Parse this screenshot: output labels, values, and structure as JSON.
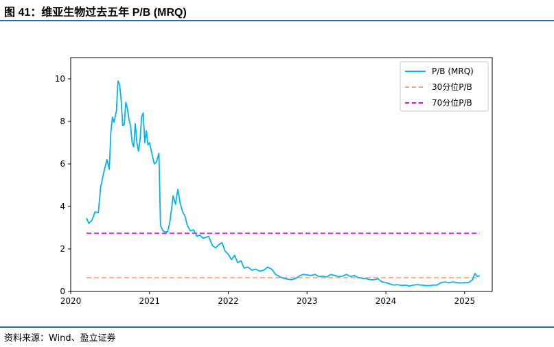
{
  "header": {
    "title": "图 41：维亚生物过去五年 P/B (MRQ)"
  },
  "footer": {
    "source": "资料来源：Wind、盈立证券"
  },
  "colors": {
    "pb_line": "#00b4f0",
    "p30_line": "#ffa07a",
    "p70_line": "#ff00ff",
    "rule": "#1f6fb4"
  },
  "chart_data": {
    "type": "line",
    "title": "",
    "xlabel": "",
    "ylabel": "",
    "xlim": [
      2020.0,
      2025.35
    ],
    "ylim": [
      0,
      11
    ],
    "xticks": [
      2020,
      2021,
      2022,
      2023,
      2024,
      2025
    ],
    "yticks": [
      0,
      2,
      4,
      6,
      8,
      10
    ],
    "grid": false,
    "legend_position": "top-right",
    "series": [
      {
        "name": "P/B (MRQ)",
        "style": "solid",
        "points": [
          [
            2020.2,
            3.45
          ],
          [
            2020.23,
            3.2
          ],
          [
            2020.27,
            3.35
          ],
          [
            2020.31,
            3.75
          ],
          [
            2020.35,
            3.7
          ],
          [
            2020.38,
            4.9
          ],
          [
            2020.42,
            5.6
          ],
          [
            2020.46,
            6.2
          ],
          [
            2020.49,
            5.75
          ],
          [
            2020.51,
            7.5
          ],
          [
            2020.53,
            8.2
          ],
          [
            2020.55,
            7.95
          ],
          [
            2020.58,
            8.5
          ],
          [
            2020.6,
            9.9
          ],
          [
            2020.62,
            9.75
          ],
          [
            2020.64,
            9.0
          ],
          [
            2020.66,
            7.8
          ],
          [
            2020.68,
            7.85
          ],
          [
            2020.7,
            8.9
          ],
          [
            2020.72,
            8.6
          ],
          [
            2020.74,
            8.1
          ],
          [
            2020.76,
            7.8
          ],
          [
            2020.78,
            7.0
          ],
          [
            2020.8,
            6.8
          ],
          [
            2020.82,
            7.9
          ],
          [
            2020.84,
            7.0
          ],
          [
            2020.86,
            6.6
          ],
          [
            2020.88,
            7.1
          ],
          [
            2020.9,
            8.2
          ],
          [
            2020.92,
            8.4
          ],
          [
            2020.94,
            7.0
          ],
          [
            2020.96,
            7.55
          ],
          [
            2020.98,
            6.9
          ],
          [
            2021.0,
            7.0
          ],
          [
            2021.03,
            6.5
          ],
          [
            2021.06,
            6.0
          ],
          [
            2021.09,
            6.1
          ],
          [
            2021.12,
            6.5
          ],
          [
            2021.14,
            3.1
          ],
          [
            2021.17,
            2.85
          ],
          [
            2021.2,
            2.8
          ],
          [
            2021.23,
            2.8
          ],
          [
            2021.26,
            3.3
          ],
          [
            2021.3,
            4.5
          ],
          [
            2021.33,
            4.1
          ],
          [
            2021.36,
            4.8
          ],
          [
            2021.39,
            4.15
          ],
          [
            2021.42,
            3.75
          ],
          [
            2021.45,
            3.55
          ],
          [
            2021.48,
            3.1
          ],
          [
            2021.52,
            2.85
          ],
          [
            2021.56,
            2.9
          ],
          [
            2021.6,
            2.6
          ],
          [
            2021.64,
            2.65
          ],
          [
            2021.68,
            2.5
          ],
          [
            2021.72,
            2.55
          ],
          [
            2021.75,
            2.6
          ],
          [
            2021.8,
            2.15
          ],
          [
            2021.84,
            2.05
          ],
          [
            2021.88,
            2.2
          ],
          [
            2021.92,
            2.3
          ],
          [
            2021.96,
            1.9
          ],
          [
            2022.0,
            1.75
          ],
          [
            2022.04,
            1.5
          ],
          [
            2022.08,
            1.7
          ],
          [
            2022.12,
            1.35
          ],
          [
            2022.16,
            1.45
          ],
          [
            2022.2,
            1.1
          ],
          [
            2022.25,
            1.15
          ],
          [
            2022.3,
            1.0
          ],
          [
            2022.35,
            1.05
          ],
          [
            2022.4,
            0.95
          ],
          [
            2022.45,
            1.0
          ],
          [
            2022.5,
            1.15
          ],
          [
            2022.55,
            1.05
          ],
          [
            2022.6,
            0.8
          ],
          [
            2022.65,
            0.7
          ],
          [
            2022.7,
            0.62
          ],
          [
            2022.75,
            0.58
          ],
          [
            2022.8,
            0.55
          ],
          [
            2022.85,
            0.6
          ],
          [
            2022.9,
            0.72
          ],
          [
            2022.95,
            0.8
          ],
          [
            2023.0,
            0.78
          ],
          [
            2023.05,
            0.75
          ],
          [
            2023.1,
            0.8
          ],
          [
            2023.15,
            0.7
          ],
          [
            2023.2,
            0.72
          ],
          [
            2023.25,
            0.68
          ],
          [
            2023.3,
            0.8
          ],
          [
            2023.35,
            0.75
          ],
          [
            2023.4,
            0.7
          ],
          [
            2023.45,
            0.72
          ],
          [
            2023.5,
            0.8
          ],
          [
            2023.55,
            0.7
          ],
          [
            2023.6,
            0.75
          ],
          [
            2023.65,
            0.65
          ],
          [
            2023.7,
            0.62
          ],
          [
            2023.75,
            0.6
          ],
          [
            2023.8,
            0.55
          ],
          [
            2023.85,
            0.55
          ],
          [
            2023.9,
            0.6
          ],
          [
            2023.95,
            0.45
          ],
          [
            2024.0,
            0.42
          ],
          [
            2024.05,
            0.35
          ],
          [
            2024.1,
            0.3
          ],
          [
            2024.15,
            0.32
          ],
          [
            2024.2,
            0.28
          ],
          [
            2024.25,
            0.3
          ],
          [
            2024.3,
            0.25
          ],
          [
            2024.35,
            0.3
          ],
          [
            2024.4,
            0.32
          ],
          [
            2024.45,
            0.3
          ],
          [
            2024.5,
            0.28
          ],
          [
            2024.55,
            0.27
          ],
          [
            2024.6,
            0.3
          ],
          [
            2024.65,
            0.3
          ],
          [
            2024.7,
            0.42
          ],
          [
            2024.75,
            0.45
          ],
          [
            2024.8,
            0.42
          ],
          [
            2024.85,
            0.45
          ],
          [
            2024.9,
            0.42
          ],
          [
            2024.95,
            0.4
          ],
          [
            2025.0,
            0.42
          ],
          [
            2025.05,
            0.42
          ],
          [
            2025.1,
            0.55
          ],
          [
            2025.13,
            0.85
          ],
          [
            2025.16,
            0.7
          ],
          [
            2025.19,
            0.75
          ]
        ]
      },
      {
        "name": "30分位P/B",
        "style": "dashed",
        "points": [
          [
            2020.2,
            0.65
          ],
          [
            2025.19,
            0.65
          ]
        ]
      },
      {
        "name": "70分位P/B",
        "style": "dashed",
        "points": [
          [
            2020.2,
            2.74
          ],
          [
            2025.19,
            2.74
          ]
        ]
      }
    ]
  }
}
